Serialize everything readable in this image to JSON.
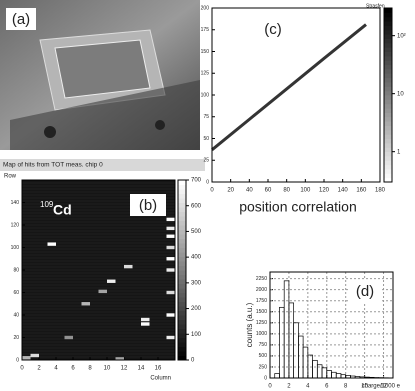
{
  "photo": {
    "panel_label": "(a)"
  },
  "chart_data": [
    {
      "type": "heatmap",
      "title": "Map of hits from TOT meas. chip 0",
      "panel_label": "(b)",
      "annotation": {
        "mass_number": "109",
        "element": "Cd"
      },
      "xlabel": "Column",
      "ylabel": "Row",
      "xlim": [
        0,
        18
      ],
      "xticks": [
        0,
        2,
        4,
        6,
        8,
        10,
        12,
        14,
        16
      ],
      "ylim": [
        0,
        160
      ],
      "yticks": [
        0,
        20,
        40,
        60,
        80,
        100,
        120,
        140
      ],
      "zlim": [
        0,
        700
      ],
      "zticks": [
        0,
        100,
        200,
        300,
        400,
        500,
        600,
        700
      ],
      "x": [
        3,
        10,
        12,
        9,
        7,
        14,
        14,
        1,
        0,
        11,
        5,
        17,
        17,
        17,
        17,
        17,
        17,
        17,
        17,
        17
      ],
      "y": [
        103,
        70,
        83,
        61,
        50,
        32,
        36,
        4,
        2,
        1,
        20,
        125,
        117,
        110,
        100,
        90,
        80,
        60,
        40,
        20
      ],
      "values": [
        700,
        650,
        600,
        450,
        500,
        700,
        650,
        600,
        500,
        450,
        400,
        700,
        650,
        700,
        600,
        700,
        650,
        600,
        700,
        650
      ]
    },
    {
      "type": "density",
      "panel_label": "(c)",
      "xlabel": "position correlation",
      "ylabel": "Strasfen",
      "xlim": [
        0,
        180
      ],
      "xticks": [
        0,
        20,
        40,
        60,
        80,
        100,
        120,
        140,
        160,
        180
      ],
      "ylim": [
        0,
        200
      ],
      "yticks": [
        0,
        25,
        50,
        75,
        100,
        125,
        150,
        175,
        200
      ],
      "zlim": [
        0.3,
        300
      ],
      "log_z": true,
      "zticks": [
        {
          "value": 100,
          "label": "10²"
        },
        10,
        1
      ],
      "color": "#111111",
      "x": [
        0,
        40,
        80,
        120,
        165
      ],
      "y": [
        37,
        72,
        107,
        142,
        181
      ]
    },
    {
      "type": "histogram",
      "panel_label": "(d)",
      "xlabel": "charge/1000 e",
      "ylabel": "counts (a.u.)",
      "xlim": [
        0,
        13
      ],
      "xticks": [
        0,
        2,
        4,
        6,
        8,
        10,
        12
      ],
      "ylim": [
        0,
        2400
      ],
      "yticks": [
        0,
        250,
        500,
        750,
        1000,
        1250,
        1500,
        1750,
        2000,
        2250
      ],
      "grid": true,
      "color": "#000000",
      "bins": [
        0,
        0.5,
        1,
        1.5,
        2,
        2.5,
        3,
        3.5,
        4,
        4.5,
        5,
        5.5,
        6,
        6.5,
        7,
        7.5,
        8,
        8.5,
        9,
        9.5,
        10,
        10.5,
        11,
        11.5,
        12,
        12.5,
        13
      ],
      "counts": [
        0,
        100,
        1600,
        2200,
        1700,
        1250,
        950,
        700,
        520,
        400,
        300,
        230,
        170,
        130,
        100,
        75,
        60,
        45,
        35,
        25,
        20,
        15,
        10,
        8,
        5,
        3
      ]
    }
  ]
}
